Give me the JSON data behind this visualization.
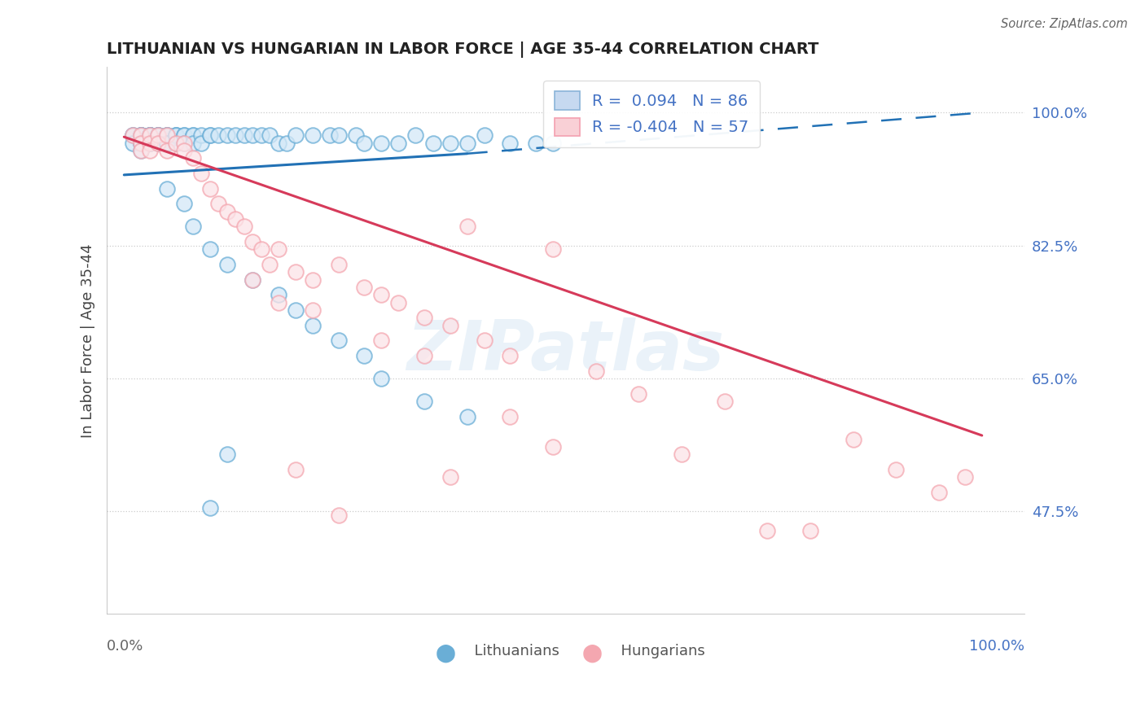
{
  "title": "LITHUANIAN VS HUNGARIAN IN LABOR FORCE | AGE 35-44 CORRELATION CHART",
  "source": "Source: ZipAtlas.com",
  "ylabel": "In Labor Force | Age 35-44",
  "ytick_labels": [
    "100.0%",
    "82.5%",
    "65.0%",
    "47.5%"
  ],
  "ytick_values": [
    1.0,
    0.825,
    0.65,
    0.475
  ],
  "xlim": [
    -0.02,
    1.05
  ],
  "ylim": [
    0.34,
    1.06
  ],
  "blue_color": "#6aaed6",
  "pink_color": "#f4a7b0",
  "line_blue": "#2171b5",
  "line_pink": "#d63a5a",
  "watermark": "ZIPatlas",
  "legend_r1": "R =  0.094   N = 86",
  "legend_r2": "R = -0.404   N = 57",
  "blue_scatter_x": [
    0.01,
    0.01,
    0.01,
    0.02,
    0.02,
    0.02,
    0.02,
    0.02,
    0.02,
    0.02,
    0.02,
    0.02,
    0.03,
    0.03,
    0.03,
    0.03,
    0.03,
    0.03,
    0.03,
    0.03,
    0.04,
    0.04,
    0.04,
    0.04,
    0.04,
    0.04,
    0.05,
    0.05,
    0.05,
    0.05,
    0.05,
    0.06,
    0.06,
    0.06,
    0.06,
    0.07,
    0.07,
    0.07,
    0.08,
    0.08,
    0.08,
    0.09,
    0.09,
    0.1,
    0.1,
    0.11,
    0.12,
    0.13,
    0.14,
    0.15,
    0.16,
    0.17,
    0.18,
    0.19,
    0.2,
    0.22,
    0.24,
    0.25,
    0.27,
    0.28,
    0.3,
    0.32,
    0.34,
    0.36,
    0.38,
    0.4,
    0.42,
    0.45,
    0.48,
    0.5,
    0.05,
    0.07,
    0.08,
    0.1,
    0.12,
    0.15,
    0.18,
    0.2,
    0.22,
    0.25,
    0.28,
    0.3,
    0.35,
    0.4,
    0.1,
    0.12
  ],
  "blue_scatter_y": [
    0.97,
    0.97,
    0.96,
    0.97,
    0.97,
    0.97,
    0.97,
    0.97,
    0.97,
    0.96,
    0.96,
    0.95,
    0.97,
    0.97,
    0.97,
    0.97,
    0.97,
    0.97,
    0.96,
    0.96,
    0.97,
    0.97,
    0.97,
    0.97,
    0.96,
    0.96,
    0.97,
    0.97,
    0.97,
    0.96,
    0.96,
    0.97,
    0.97,
    0.97,
    0.96,
    0.97,
    0.97,
    0.96,
    0.97,
    0.97,
    0.96,
    0.97,
    0.96,
    0.97,
    0.97,
    0.97,
    0.97,
    0.97,
    0.97,
    0.97,
    0.97,
    0.97,
    0.96,
    0.96,
    0.97,
    0.97,
    0.97,
    0.97,
    0.97,
    0.96,
    0.96,
    0.96,
    0.97,
    0.96,
    0.96,
    0.96,
    0.97,
    0.96,
    0.96,
    0.96,
    0.9,
    0.88,
    0.85,
    0.82,
    0.8,
    0.78,
    0.76,
    0.74,
    0.72,
    0.7,
    0.68,
    0.65,
    0.62,
    0.6,
    0.48,
    0.55
  ],
  "pink_scatter_x": [
    0.01,
    0.02,
    0.02,
    0.02,
    0.03,
    0.03,
    0.03,
    0.04,
    0.04,
    0.05,
    0.05,
    0.06,
    0.07,
    0.07,
    0.08,
    0.09,
    0.1,
    0.11,
    0.12,
    0.13,
    0.14,
    0.15,
    0.16,
    0.17,
    0.18,
    0.2,
    0.22,
    0.25,
    0.28,
    0.3,
    0.32,
    0.35,
    0.38,
    0.4,
    0.42,
    0.45,
    0.5,
    0.55,
    0.6,
    0.65,
    0.7,
    0.75,
    0.8,
    0.85,
    0.9,
    0.95,
    0.98,
    0.15,
    0.18,
    0.22,
    0.3,
    0.35,
    0.45,
    0.2,
    0.25,
    0.38,
    0.5
  ],
  "pink_scatter_y": [
    0.97,
    0.97,
    0.96,
    0.95,
    0.97,
    0.96,
    0.95,
    0.97,
    0.96,
    0.97,
    0.95,
    0.96,
    0.96,
    0.95,
    0.94,
    0.92,
    0.9,
    0.88,
    0.87,
    0.86,
    0.85,
    0.83,
    0.82,
    0.8,
    0.82,
    0.79,
    0.78,
    0.8,
    0.77,
    0.76,
    0.75,
    0.73,
    0.72,
    0.85,
    0.7,
    0.68,
    0.82,
    0.66,
    0.63,
    0.55,
    0.62,
    0.45,
    0.45,
    0.57,
    0.53,
    0.5,
    0.52,
    0.78,
    0.75,
    0.74,
    0.7,
    0.68,
    0.6,
    0.53,
    0.47,
    0.52,
    0.56
  ],
  "blue_line_x": [
    0.0,
    0.4,
    1.0
  ],
  "blue_line_y_start": 0.918,
  "blue_line_y_mid": 0.946,
  "blue_line_y_end": 1.0,
  "pink_line_x_start": 0.0,
  "pink_line_x_end": 1.0,
  "pink_line_y_start": 0.968,
  "pink_line_y_end": 0.575
}
